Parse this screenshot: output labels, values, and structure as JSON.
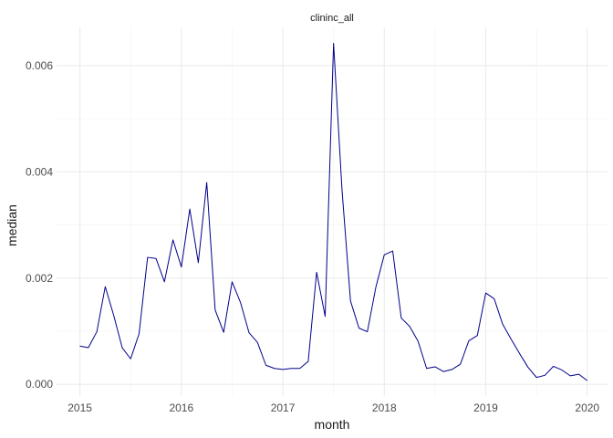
{
  "chart_data": {
    "type": "line",
    "title": "clininc_all",
    "xlabel": "month",
    "ylabel": "median",
    "xlim": [
      2014.77,
      2020.2
    ],
    "ylim": [
      -0.00022,
      0.00672
    ],
    "x_ticks": [
      {
        "value": 2015,
        "label": "2015"
      },
      {
        "value": 2016,
        "label": "2016"
      },
      {
        "value": 2017,
        "label": "2017"
      },
      {
        "value": 2018,
        "label": "2018"
      },
      {
        "value": 2019,
        "label": "2019"
      },
      {
        "value": 2020,
        "label": "2020"
      }
    ],
    "y_ticks": [
      {
        "value": 0.0,
        "label": "0.000"
      },
      {
        "value": 0.002,
        "label": "0.002"
      },
      {
        "value": 0.004,
        "label": "0.004"
      },
      {
        "value": 0.006,
        "label": "0.006"
      }
    ],
    "grid": true,
    "line_color": "#00008B",
    "series": [
      {
        "x": [
          2015.0,
          2015.083,
          2015.167,
          2015.25,
          2015.333,
          2015.417,
          2015.5,
          2015.583,
          2015.667,
          2015.75,
          2015.833,
          2015.917,
          2016.0,
          2016.083,
          2016.167,
          2016.25,
          2016.333,
          2016.417,
          2016.5,
          2016.583,
          2016.667,
          2016.75,
          2016.833,
          2016.917,
          2017.0,
          2017.083,
          2017.167,
          2017.25,
          2017.333,
          2017.417,
          2017.5,
          2017.583,
          2017.667,
          2017.75,
          2017.833,
          2017.917,
          2018.0,
          2018.083,
          2018.167,
          2018.25,
          2018.333,
          2018.417,
          2018.5,
          2018.583,
          2018.667,
          2018.75,
          2018.833,
          2018.917,
          2019.0,
          2019.083,
          2019.167,
          2019.25,
          2019.333,
          2019.417,
          2019.5,
          2019.583,
          2019.667,
          2019.75,
          2019.833,
          2019.917,
          2020.0
        ],
        "y": [
          0.00072,
          0.00069,
          0.00099,
          0.00184,
          0.0013,
          0.00069,
          0.00048,
          0.00095,
          0.00239,
          0.00237,
          0.00193,
          0.00272,
          0.00221,
          0.0033,
          0.00229,
          0.0038,
          0.0014,
          0.00098,
          0.00193,
          0.00154,
          0.00097,
          0.00079,
          0.00036,
          0.0003,
          0.00028,
          0.0003,
          0.0003,
          0.00043,
          0.00211,
          0.00128,
          0.00642,
          0.00367,
          0.00157,
          0.00106,
          0.00099,
          0.00183,
          0.00244,
          0.00251,
          0.00125,
          0.00109,
          0.00081,
          0.0003,
          0.00033,
          0.00024,
          0.00028,
          0.00038,
          0.00082,
          0.00092,
          0.00172,
          0.00161,
          0.00113,
          0.00085,
          0.00058,
          0.00032,
          0.00013,
          0.00017,
          0.00034,
          0.00027,
          0.00016,
          0.00019,
          7e-05
        ]
      }
    ]
  }
}
